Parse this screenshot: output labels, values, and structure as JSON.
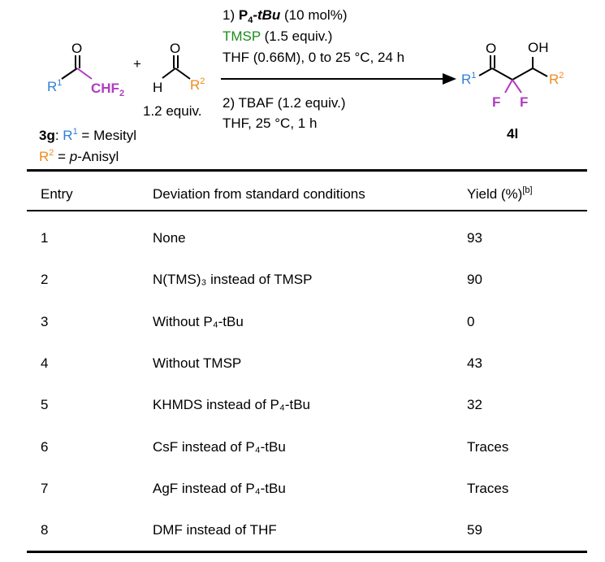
{
  "scheme": {
    "step1": {
      "prefix": "1) ",
      "reagent": "P",
      "sub": "4",
      "reagent_tail": "-tBu",
      "amount": " (10 mol%)"
    },
    "step1b": {
      "reagent": "TMSP",
      "amount": " (1.5 equiv.)"
    },
    "step1c": "THF (0.66M), 0 to 25 °C, 24 h",
    "step2": "2) TBAF (1.2 equiv.)",
    "step2b": "THF, 25 °C, 1 h",
    "plus": "+",
    "equiv": "1.2 equiv.",
    "ketone": {
      "O": "O",
      "R": "R",
      "R_sup": "1",
      "group": "CHF",
      "group_sub": "2"
    },
    "aldehyde": {
      "O": "O",
      "H": "H",
      "R": "R",
      "R_sup": "2"
    },
    "product": {
      "O": "O",
      "OH": "OH",
      "R1": "R",
      "R1_sup": "1",
      "R2": "R",
      "R2_sup": "2",
      "F": "F",
      "label": "4l"
    },
    "substrate_label": {
      "id": "3g",
      "r1": "R",
      "r1_sup": "1",
      "r1_val": " = Mesityl",
      "r2": "R",
      "r2_sup": "2",
      "r2_eq": " = ",
      "r2_p": "p",
      "r2_val": "-Anisyl"
    },
    "colors": {
      "R1": "#2f80d8",
      "CF": "#b03cc0",
      "R2": "#f08a1e",
      "TMSP": "#1e8a1e"
    }
  },
  "table": {
    "headers": {
      "entry": "Entry",
      "deviation": "Deviation from standard conditions",
      "yield": "Yield (%)",
      "yield_note": "[b]"
    },
    "rows": [
      {
        "entry": "1",
        "deviation": "None",
        "yield": "93"
      },
      {
        "entry": "2",
        "deviation": "N(TMS)₃ instead of TMSP",
        "yield": "90"
      },
      {
        "entry": "3",
        "deviation": "Without P₄-tBu",
        "yield": "0"
      },
      {
        "entry": "4",
        "deviation": "Without TMSP",
        "yield": "43"
      },
      {
        "entry": "5",
        "deviation": "KHMDS instead of P₄-tBu",
        "yield": "32"
      },
      {
        "entry": "6",
        "deviation": "CsF instead of P₄-tBu",
        "yield": "Traces"
      },
      {
        "entry": "7",
        "deviation": "AgF instead of P₄-tBu",
        "yield": "Traces"
      },
      {
        "entry": "8",
        "deviation": "DMF instead of THF",
        "yield": "59"
      }
    ]
  }
}
